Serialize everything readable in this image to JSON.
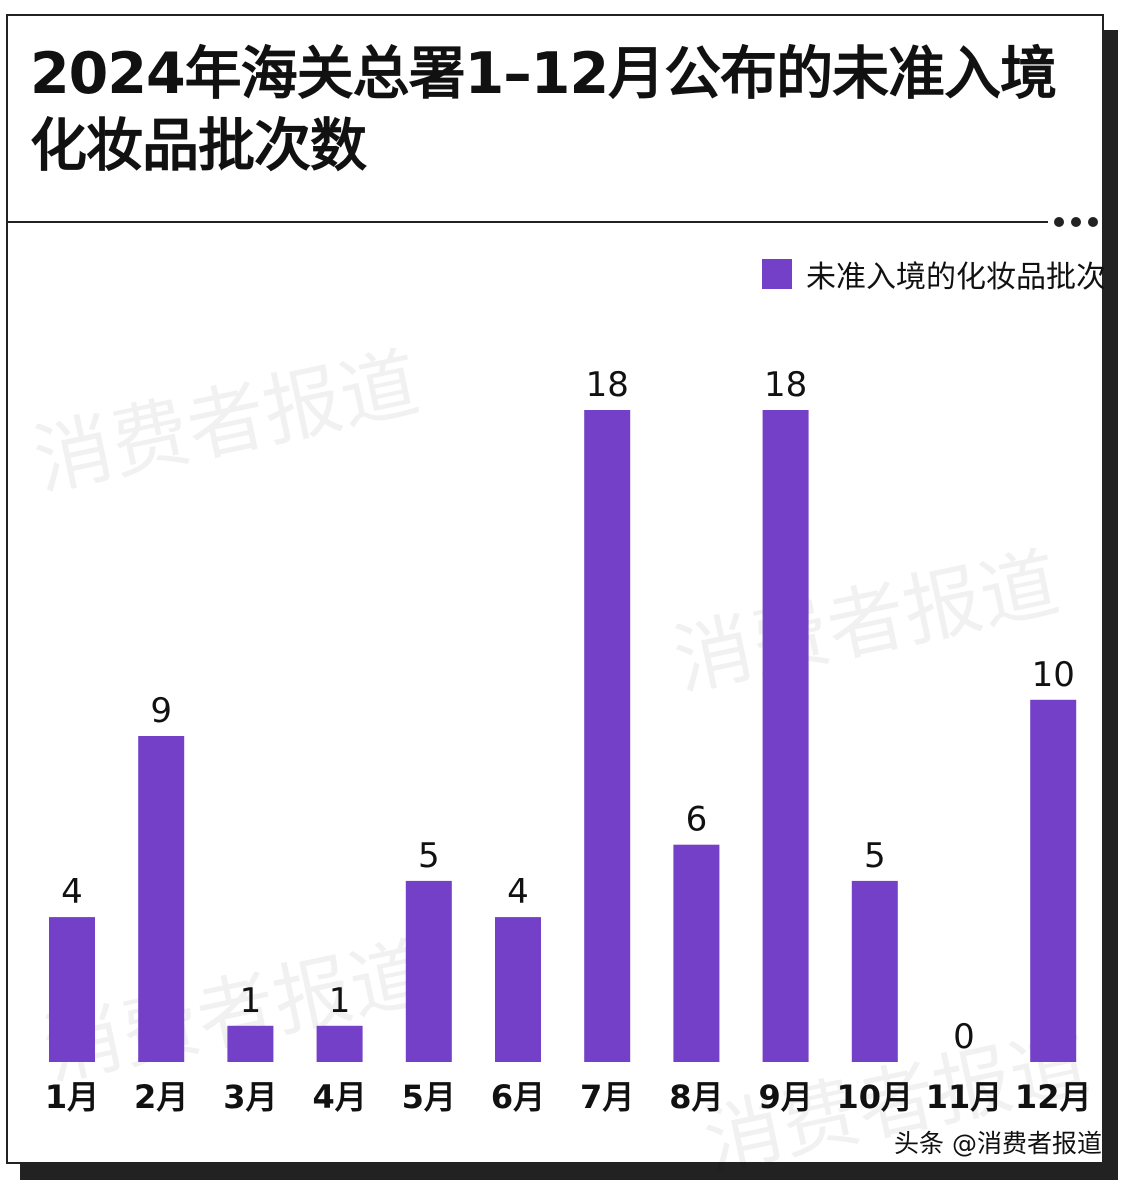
{
  "header": {
    "title": "2024年海关总署1–12月公布的未准入境化妆品批次数"
  },
  "watermark_text": "消费者报道",
  "credit": "头条 @消费者报道",
  "more_icon": "more-horizontal-icon",
  "colors": {
    "bar": "#7440c8",
    "text": "#111111",
    "border": "#222222"
  },
  "chart_data": {
    "type": "bar",
    "title": "2024年海关总署1–12月公布的未准入境化妆品批次数",
    "categories": [
      "1月",
      "2月",
      "3月",
      "4月",
      "5月",
      "6月",
      "7月",
      "8月",
      "9月",
      "10月",
      "11月",
      "12月"
    ],
    "series": [
      {
        "name": "未准入境的化妆品批次",
        "values": [
          4,
          9,
          1,
          1,
          5,
          4,
          18,
          6,
          18,
          5,
          0,
          10
        ]
      }
    ],
    "data_labels": true,
    "ylim": [
      0,
      18
    ],
    "grid": false,
    "legend": "top-right",
    "xlabel": "",
    "ylabel": ""
  }
}
